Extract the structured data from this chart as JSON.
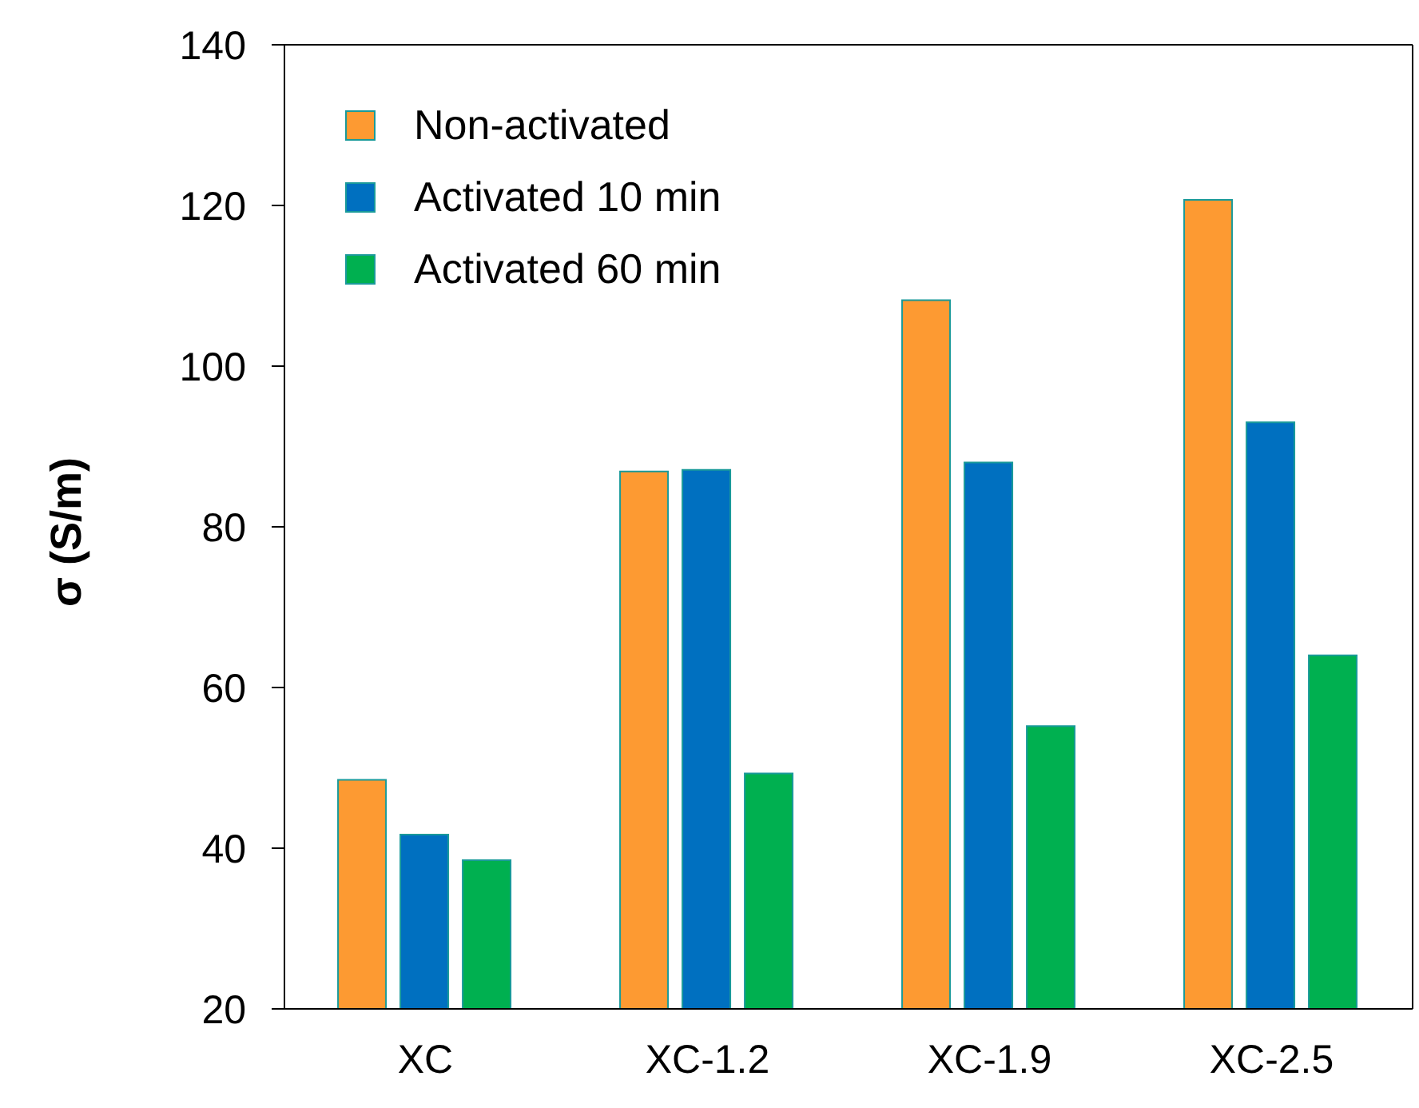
{
  "chart_data": {
    "type": "bar",
    "ylabel": "σ (S/m)",
    "categories": [
      "XC",
      "XC-1.2",
      "XC-1.9",
      "XC-2.5"
    ],
    "series": [
      {
        "name": "Non-activated",
        "color": "#fd9a32",
        "values": [
          48.5,
          86.9,
          108.2,
          120.7
        ]
      },
      {
        "name": "Activated 10 min",
        "color": "#0070c0",
        "values": [
          41.7,
          87.1,
          88.0,
          93.0
        ]
      },
      {
        "name": "Activated 60 min",
        "color": "#00b050",
        "values": [
          38.5,
          49.3,
          55.2,
          64.0
        ]
      }
    ],
    "ylim": [
      20,
      140
    ],
    "yticks": [
      20,
      40,
      60,
      80,
      100,
      120,
      140
    ],
    "grid": false,
    "legend": "top left"
  }
}
